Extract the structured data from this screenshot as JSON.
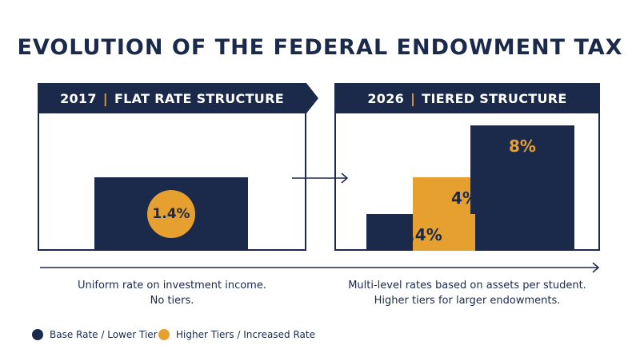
{
  "title": "EVOLUTION OF THE FEDERAL ENDOWMENT TAX",
  "left_panel": {
    "year": "2017",
    "heading": "FLAT RATE STRUCTURE",
    "rate_label": "1.4%",
    "description_line1": "Uniform rate on investment income.",
    "description_line2": "No tiers."
  },
  "right_panel": {
    "year": "2026",
    "heading": "TIERED STRUCTURE",
    "tiers": [
      {
        "label": "1.4%",
        "color": "#1b2a4a"
      },
      {
        "label": "4%",
        "color": "#e6a030"
      },
      {
        "label": "8%",
        "color": "#1b2a4a"
      }
    ],
    "description_line1": "Multi-level rates based on assets per student.",
    "description_line2": "Higher tiers for larger endowments."
  },
  "legend": [
    {
      "label": "Base Rate / Lower Tier",
      "color": "#1b2a4a"
    },
    {
      "label": "Higher Tiers / Increased Rate",
      "color": "#e6a030"
    }
  ],
  "colors": {
    "navy": "#1b2a4a",
    "gold": "#e6a030"
  }
}
